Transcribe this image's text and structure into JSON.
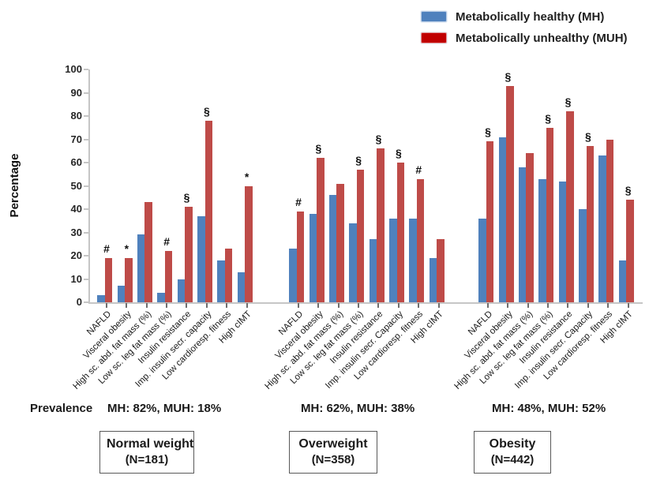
{
  "chart_data": {
    "type": "bar",
    "title": "",
    "ylabel": "Percentage",
    "ylim": [
      0,
      100
    ],
    "yticks": [
      0,
      10,
      20,
      30,
      40,
      50,
      60,
      70,
      80,
      90,
      100
    ],
    "grid": false,
    "legend_position": "top-right",
    "legend": [
      {
        "label": "Metabolically healthy (MH)",
        "color": "#4F81BD"
      },
      {
        "label": "Metabolically unhealthy (MUH)",
        "color": "#C00000"
      }
    ],
    "bar_colors": {
      "mh": "#4F81BD",
      "muh": "#BE4B48"
    },
    "prevalence_label": "Prevalence",
    "groups": [
      {
        "name": "Normal weight",
        "n_label": "(N=181)",
        "prevalence": "MH: 82%, MUH: 18%",
        "categories": [
          "NAFLD",
          "Visceral obesity",
          "High sc. abd. fat mass (%)",
          "Low sc. leg fat mass (%)",
          "Insulin resistance",
          "Imp. insulin secr. capacity",
          "Low cardioresp. fitness",
          "High cIMT"
        ],
        "series": [
          {
            "name": "MH",
            "values": [
              3,
              7,
              29,
              4,
              10,
              37,
              18,
              13
            ]
          },
          {
            "name": "MUH",
            "values": [
              19,
              19,
              43,
              22,
              41,
              78,
              23,
              50
            ]
          }
        ],
        "annotations": [
          "#",
          "*",
          "",
          "#",
          "§",
          "§",
          "",
          "*"
        ]
      },
      {
        "name": "Overweight",
        "n_label": "(N=358)",
        "prevalence": "MH: 62%, MUH: 38%",
        "categories": [
          "NAFLD",
          "Visceral obesity",
          "High sc. abd. fat mass (%)",
          "Low sc. leg fat mass (%)",
          "Insulin resistance",
          "Imp. insulin secr. Capacity",
          "Low cardioresp. fitness",
          "High cIMT"
        ],
        "series": [
          {
            "name": "MH",
            "values": [
              23,
              38,
              46,
              34,
              27,
              36,
              36,
              19
            ]
          },
          {
            "name": "MUH",
            "values": [
              39,
              62,
              51,
              57,
              66,
              60,
              53,
              27
            ]
          }
        ],
        "annotations": [
          "#",
          "§",
          "",
          "§",
          "§",
          "§",
          "#",
          ""
        ]
      },
      {
        "name": "Obesity",
        "n_label": "(N=442)",
        "prevalence": "MH: 48%, MUH: 52%",
        "categories": [
          "NAFLD",
          "Visceral obesity",
          "High sc. abd. fat mass (%)",
          "Low sc. leg fat mass (%)",
          "Insulin resistance",
          "Imp. insulin secr. Capacity",
          "Low cardioresp. fitness",
          "High cIMT"
        ],
        "series": [
          {
            "name": "MH",
            "values": [
              36,
              71,
              58,
              53,
              52,
              40,
              63,
              18
            ]
          },
          {
            "name": "MUH",
            "values": [
              69,
              93,
              64,
              75,
              82,
              67,
              70,
              44
            ]
          }
        ],
        "annotations": [
          "§",
          "§",
          "",
          "§",
          "§",
          "§",
          "",
          "§"
        ]
      }
    ]
  }
}
